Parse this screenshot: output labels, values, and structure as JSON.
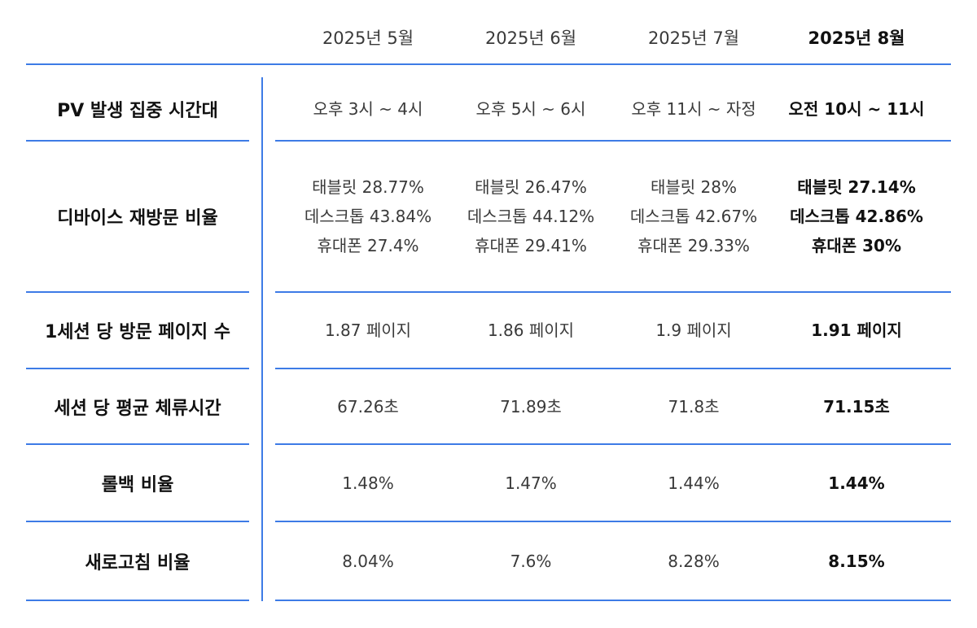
{
  "columns": [
    "2025년 5월",
    "2025년 6월",
    "2025년 7월",
    "2025년 8월"
  ],
  "rows": [
    {
      "label": "PV 발생 집중 시간대",
      "cells": [
        "오후 3시 ~ 4시",
        "오후 5시 ~ 6시",
        "오후 11시 ~ 자정",
        "오전 10시 ~ 11시"
      ]
    },
    {
      "label": "디바이스 재방문 비율",
      "multi": [
        [
          "태블릿 28.77%",
          "데스크톱 43.84%",
          "휴대폰 27.4%"
        ],
        [
          "태블릿 26.47%",
          "데스크톱 44.12%",
          "휴대폰 29.41%"
        ],
        [
          "태블릿 28%",
          "데스크톱 42.67%",
          "휴대폰 29.33%"
        ],
        [
          "태블릿 27.14%",
          "데스크톱 42.86%",
          "휴대폰 30%"
        ]
      ]
    },
    {
      "label": "1세션 당 방문 페이지 수",
      "cells": [
        "1.87 페이지",
        "1.86 페이지",
        "1.9 페이지",
        "1.91 페이지"
      ]
    },
    {
      "label": "세션 당 평균 체류시간",
      "cells": [
        "67.26초",
        "71.89초",
        "71.8초",
        "71.15초"
      ]
    },
    {
      "label": "롤백 비율",
      "cells": [
        "1.48%",
        "1.47%",
        "1.44%",
        "1.44%"
      ]
    },
    {
      "label": "새로고침 비율",
      "cells": [
        "8.04%",
        "7.6%",
        "8.28%",
        "8.15%"
      ]
    }
  ],
  "colors": {
    "accent_line": "#3d7be6",
    "text": "#3a3a3a",
    "emphasis": "#111111"
  }
}
